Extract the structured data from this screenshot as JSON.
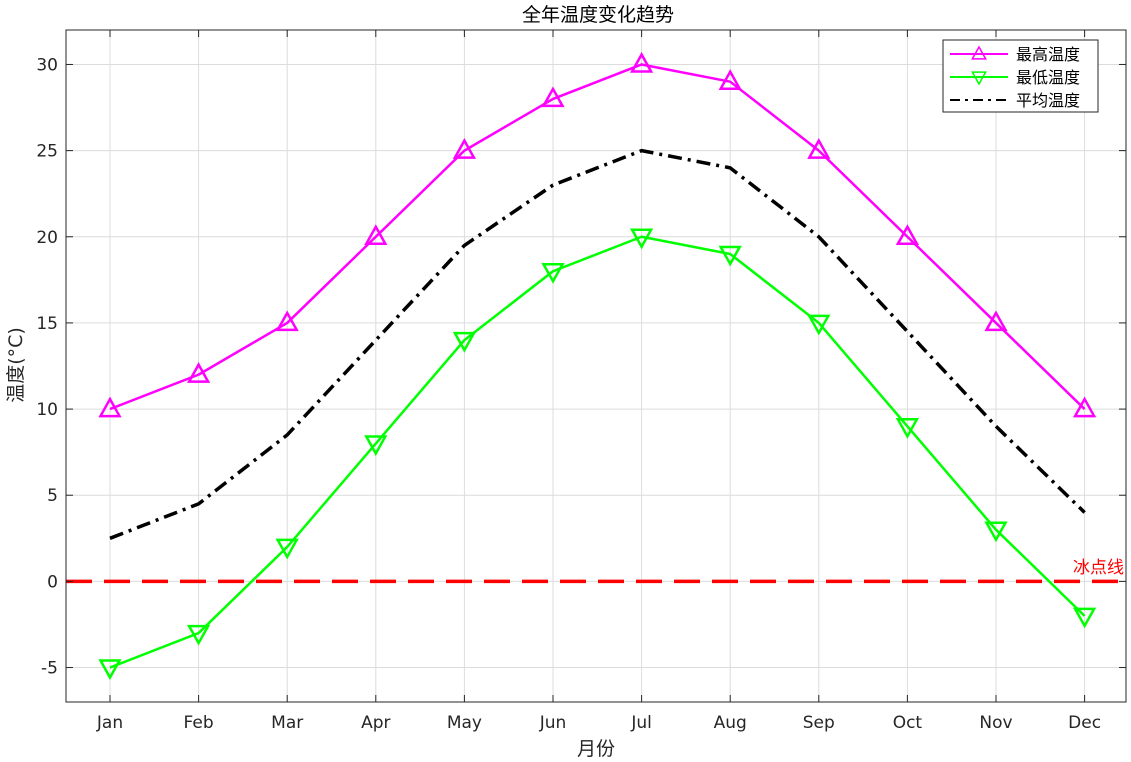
{
  "chart_data": {
    "type": "line",
    "title": "全年温度变化趋势",
    "xlabel": "月份",
    "ylabel": "温度(°C)",
    "categories": [
      "Jan",
      "Feb",
      "Mar",
      "Apr",
      "May",
      "Jun",
      "Jul",
      "Aug",
      "Sep",
      "Oct",
      "Nov",
      "Dec"
    ],
    "ylim": [
      -7,
      32
    ],
    "yticks": [
      -5,
      0,
      5,
      10,
      15,
      20,
      25,
      30
    ],
    "ytick_labels": [
      "-5",
      "0",
      "5",
      "10",
      "15",
      "20",
      "25",
      "30"
    ],
    "grid": true,
    "legend_position": "top-right",
    "series": [
      {
        "name": "最高温度",
        "color": "#FF00FF",
        "marker": "triangle-up",
        "line_style": "solid",
        "values": [
          10,
          12,
          15,
          20,
          25,
          28,
          30,
          29,
          25,
          20,
          15,
          10
        ]
      },
      {
        "name": "最低温度",
        "color": "#00FF00",
        "marker": "triangle-down",
        "line_style": "solid",
        "values": [
          -5,
          -3,
          2,
          8,
          14,
          18,
          20,
          19,
          15,
          9,
          3,
          -2
        ]
      },
      {
        "name": "平均温度",
        "color": "#000000",
        "marker": "none",
        "line_style": "dash-dot",
        "values": [
          2.5,
          4.5,
          8.5,
          14,
          19.5,
          23,
          25,
          24,
          20,
          14.5,
          9,
          4
        ]
      }
    ],
    "reference_line": {
      "y": 0,
      "label": "冰点线",
      "color": "#FF0000",
      "line_style": "dashed"
    }
  }
}
